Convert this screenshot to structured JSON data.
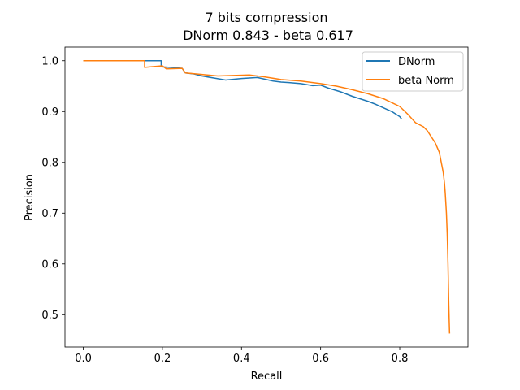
{
  "chart_data": {
    "type": "line",
    "title_line1": "7 bits compression",
    "title_line2": "DNorm 0.843 - beta 0.617",
    "xlabel": "Recall",
    "ylabel": "Precision",
    "xlim": [
      -0.0463,
      0.9725
    ],
    "ylim": [
      0.4365,
      1.0268
    ],
    "xticks": [
      0.0,
      0.2,
      0.4,
      0.6,
      0.8
    ],
    "xtick_labels": [
      "0.0",
      "0.2",
      "0.4",
      "0.6",
      "0.8"
    ],
    "yticks": [
      0.5,
      0.6,
      0.7,
      0.8,
      0.9,
      1.0
    ],
    "ytick_labels": [
      "0.5",
      "0.6",
      "0.7",
      "0.8",
      "0.9",
      "1.0"
    ],
    "grid": false,
    "legend_position": "top-right",
    "series": [
      {
        "name": "DNorm",
        "color": "#1f77b4",
        "x": [
          0.0,
          0.05,
          0.1,
          0.15,
          0.197,
          0.197,
          0.22,
          0.25,
          0.258,
          0.28,
          0.3,
          0.33,
          0.36,
          0.4,
          0.44,
          0.48,
          0.5,
          0.52,
          0.55,
          0.58,
          0.6,
          0.62,
          0.65,
          0.68,
          0.7,
          0.72,
          0.74,
          0.76,
          0.78,
          0.8,
          0.805
        ],
        "y": [
          1.0,
          1.0,
          1.0,
          1.0,
          1.0,
          0.988,
          0.987,
          0.985,
          0.976,
          0.974,
          0.97,
          0.966,
          0.962,
          0.965,
          0.967,
          0.96,
          0.958,
          0.957,
          0.955,
          0.951,
          0.952,
          0.946,
          0.939,
          0.93,
          0.925,
          0.92,
          0.914,
          0.907,
          0.9,
          0.89,
          0.885
        ]
      },
      {
        "name": "beta Norm",
        "color": "#ff7f0e",
        "x": [
          0.0,
          0.05,
          0.1,
          0.155,
          0.155,
          0.2,
          0.21,
          0.25,
          0.258,
          0.3,
          0.34,
          0.38,
          0.42,
          0.46,
          0.5,
          0.55,
          0.6,
          0.64,
          0.68,
          0.72,
          0.76,
          0.8,
          0.82,
          0.84,
          0.86,
          0.87,
          0.88,
          0.89,
          0.9,
          0.905,
          0.91,
          0.913,
          0.915,
          0.918,
          0.92,
          0.921,
          0.922,
          0.923,
          0.924,
          0.925,
          0.926
        ],
        "y": [
          1.0,
          1.0,
          1.0,
          1.0,
          0.987,
          0.99,
          0.984,
          0.985,
          0.976,
          0.973,
          0.97,
          0.971,
          0.972,
          0.968,
          0.963,
          0.96,
          0.955,
          0.95,
          0.943,
          0.935,
          0.925,
          0.91,
          0.895,
          0.878,
          0.87,
          0.862,
          0.85,
          0.838,
          0.82,
          0.8,
          0.78,
          0.76,
          0.74,
          0.7,
          0.66,
          0.63,
          0.6,
          0.56,
          0.52,
          0.49,
          0.463
        ]
      }
    ]
  }
}
